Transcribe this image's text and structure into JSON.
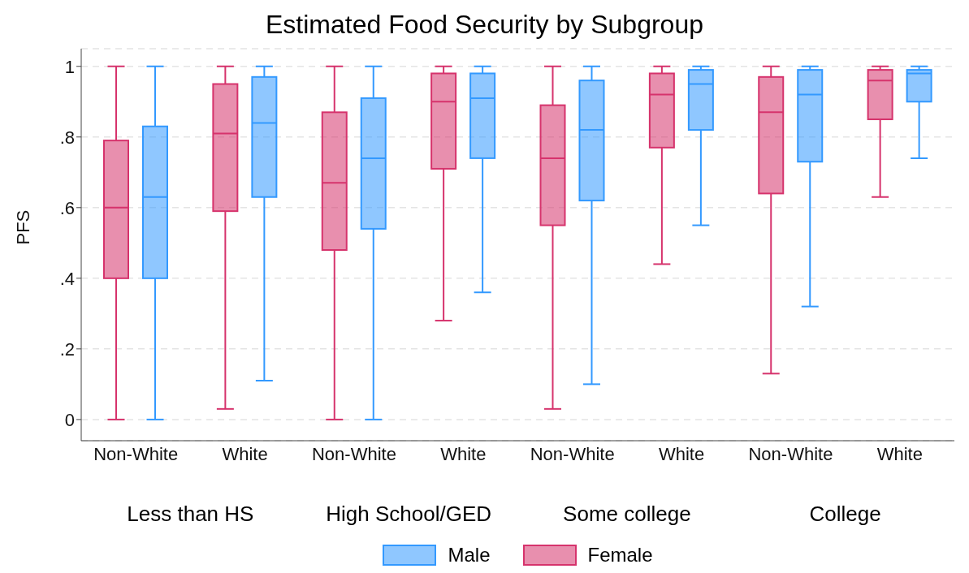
{
  "chart_data": {
    "type": "box",
    "title": "Estimated Food Security by Subgroup",
    "ylabel": "PFS",
    "categories": [
      "Non-White",
      "White",
      "Non-White",
      "White",
      "Non-White",
      "White",
      "Non-White",
      "White"
    ],
    "annotations": [
      "Less than HS",
      "High School/GED",
      "Some college",
      "College"
    ],
    "ylim": [
      -0.06,
      1.05
    ],
    "yticks": [
      0,
      {
        "value": 0.2,
        "label": ".2"
      },
      {
        "value": 0.4,
        "label": ".4"
      },
      {
        "value": 0.6,
        "label": ".6"
      },
      {
        "value": 0.8,
        "label": ".8"
      },
      1
    ],
    "grid": "y",
    "legend": "bottom",
    "series": [
      {
        "name": "Female",
        "color": "#d6336c",
        "boxes": [
          {
            "low": 0,
            "q1": 0.4,
            "median": 0.6,
            "q3": 0.79,
            "high": 1
          },
          {
            "low": 0.03,
            "q1": 0.59,
            "median": 0.81,
            "q3": 0.95,
            "high": 1
          },
          {
            "low": 0,
            "q1": 0.48,
            "median": 0.67,
            "q3": 0.87,
            "high": 1
          },
          {
            "low": 0.28,
            "q1": 0.71,
            "median": 0.9,
            "q3": 0.98,
            "high": 1
          },
          {
            "low": 0.03,
            "q1": 0.55,
            "median": 0.74,
            "q3": 0.89,
            "high": 1
          },
          {
            "low": 0.44,
            "q1": 0.77,
            "median": 0.92,
            "q3": 0.98,
            "high": 1
          },
          {
            "low": 0.13,
            "q1": 0.64,
            "median": 0.87,
            "q3": 0.97,
            "high": 1
          },
          {
            "low": 0.63,
            "q1": 0.85,
            "median": 0.96,
            "q3": 0.99,
            "high": 1
          }
        ]
      },
      {
        "name": "Male",
        "color": "#3399ff",
        "boxes": [
          {
            "low": 0,
            "q1": 0.4,
            "median": 0.63,
            "q3": 0.83,
            "high": 1
          },
          {
            "low": 0.11,
            "q1": 0.63,
            "median": 0.84,
            "q3": 0.97,
            "high": 1
          },
          {
            "low": 0,
            "q1": 0.54,
            "median": 0.74,
            "q3": 0.91,
            "high": 1
          },
          {
            "low": 0.36,
            "q1": 0.74,
            "median": 0.91,
            "q3": 0.98,
            "high": 1
          },
          {
            "low": 0.1,
            "q1": 0.62,
            "median": 0.82,
            "q3": 0.96,
            "high": 1
          },
          {
            "low": 0.55,
            "q1": 0.82,
            "median": 0.95,
            "q3": 0.99,
            "high": 1
          },
          {
            "low": 0.32,
            "q1": 0.73,
            "median": 0.92,
            "q3": 0.99,
            "high": 1
          },
          {
            "low": 0.74,
            "q1": 0.9,
            "median": 0.98,
            "q3": 0.99,
            "high": 1
          }
        ]
      }
    ]
  }
}
